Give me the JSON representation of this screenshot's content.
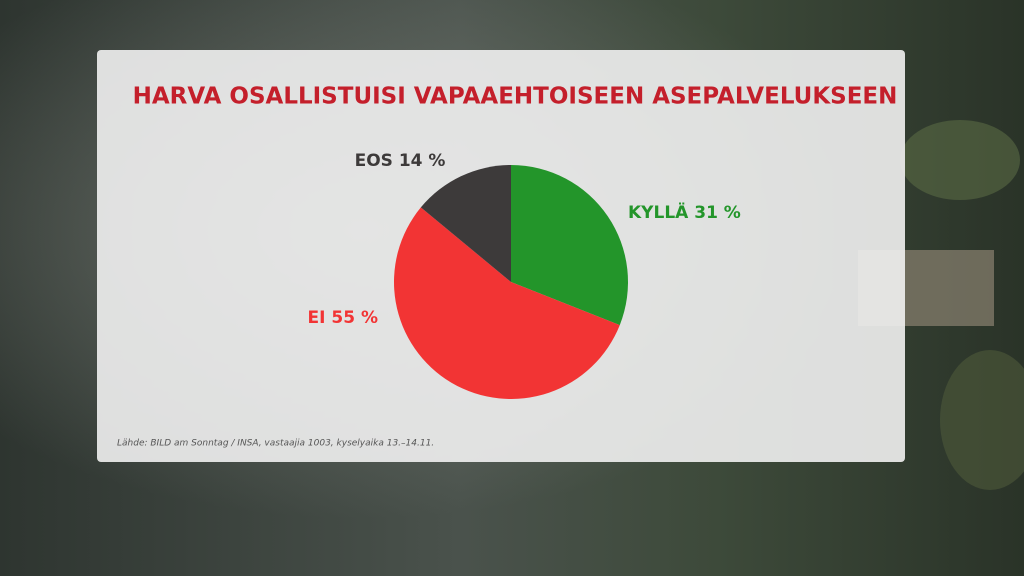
{
  "chart_data": {
    "type": "pie",
    "title": "HARVA OSALLISTUISI VAPAAEHTOISEEN ASEPALVELUKSEEN",
    "categories": [
      "KYLLÄ",
      "EI",
      "EOS"
    ],
    "values": [
      31,
      55,
      14
    ],
    "value_labels": [
      "31 %",
      "55 %",
      "14 %"
    ],
    "colors": [
      "#23952a",
      "#f23434",
      "#3d3a3a"
    ],
    "source": "Lähde: BILD am Sonntag / INSA, vastaajia 1003, kyselyaika 13.–14.11."
  }
}
